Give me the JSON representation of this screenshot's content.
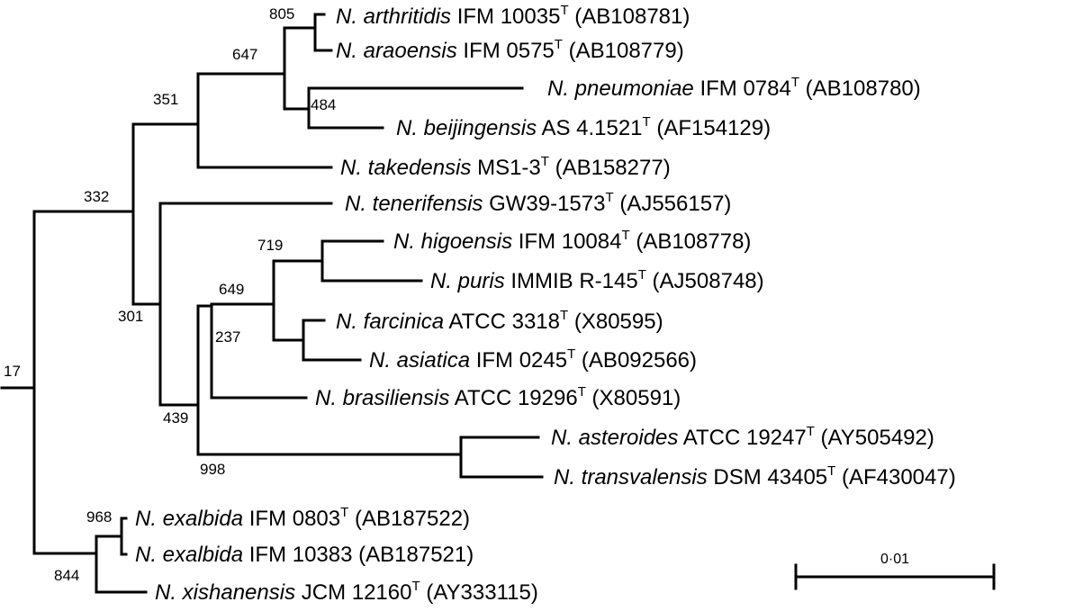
{
  "tree": {
    "bootstrap": {
      "n17": "17",
      "n332": "332",
      "n351": "351",
      "n647": "647",
      "n805": "805",
      "n484": "484",
      "n301": "301",
      "n439": "439",
      "n649": "649",
      "n237": "237",
      "n719": "719",
      "n998": "998",
      "n968": "968",
      "n844": "844"
    },
    "taxa": [
      {
        "genus": "N. arthritidis",
        "strain": " IFM 10035",
        "type": "T",
        "acc": " (AB108781)"
      },
      {
        "genus": "N. araoensis",
        "strain": " IFM 0575",
        "type": "T",
        "acc": " (AB108779)"
      },
      {
        "genus": "N. pneumoniae",
        "strain": " IFM 0784",
        "type": "T",
        "acc": " (AB108780)"
      },
      {
        "genus": "N. beijingensis",
        "strain": " AS 4.1521",
        "type": "T",
        "acc": " (AF154129)"
      },
      {
        "genus": "N. takedensis",
        "strain": " MS1-3",
        "type": "T",
        "acc": " (AB158277)"
      },
      {
        "genus": "N. tenerifensis",
        "strain": " GW39-1573",
        "type": "T",
        "acc": " (AJ556157)"
      },
      {
        "genus": "N. higoensis",
        "strain": " IFM 10084",
        "type": "T",
        "acc": " (AB108778)"
      },
      {
        "genus": "N. puris",
        "strain": " IMMIB R-145",
        "type": "T",
        "acc": " (AJ508748)"
      },
      {
        "genus": "N. farcinica",
        "strain": " ATCC 3318",
        "type": "T",
        "acc": " (X80595)"
      },
      {
        "genus": "N. asiatica",
        "strain": " IFM 0245",
        "type": "T",
        "acc": " (AB092566)"
      },
      {
        "genus": "N. brasiliensis",
        "strain": " ATCC 19296",
        "type": "T",
        "acc": " (X80591)"
      },
      {
        "genus": "N. asteroides",
        "strain": " ATCC 19247",
        "type": "T",
        "acc": " (AY505492)"
      },
      {
        "genus": "N. transvalensis",
        "strain": " DSM 43405",
        "type": "T",
        "acc": " (AF430047)"
      },
      {
        "genus": "N. exalbida",
        "strain": " IFM 0803",
        "type": "T",
        "acc": " (AB187522)"
      },
      {
        "genus": "N. exalbida",
        "strain": " IFM 10383 (AB187521)",
        "type": "",
        "acc": ""
      },
      {
        "genus": "N. xishanensis",
        "strain": " JCM 12160",
        "type": "T",
        "acc": " (AY333115)"
      }
    ],
    "scale_bar": {
      "label": "0·01"
    }
  }
}
